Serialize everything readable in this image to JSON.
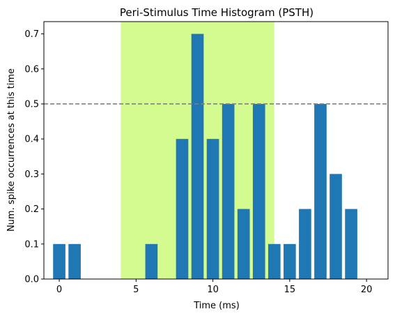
{
  "chart_data": {
    "type": "bar",
    "title": "Peri-Stimulus Time Histogram (PSTH)",
    "xlabel": "Time (ms)",
    "ylabel": "Num. spike occurrences at this time",
    "xlim": [
      -1,
      21.4
    ],
    "ylim": [
      0,
      0.735
    ],
    "xticks": [
      0,
      5,
      10,
      15,
      20
    ],
    "yticks": [
      0.0,
      0.1,
      0.2,
      0.3,
      0.4,
      0.5,
      0.6,
      0.7
    ],
    "xtick_labels": [
      "0",
      "5",
      "10",
      "15",
      "20"
    ],
    "ytick_labels": [
      "0.0",
      "0.1",
      "0.2",
      "0.3",
      "0.4",
      "0.5",
      "0.6",
      "0.7"
    ],
    "bar_width": 0.8,
    "x": [
      0,
      1,
      6,
      8,
      9,
      10,
      11,
      12,
      13,
      14,
      15,
      16,
      17,
      18,
      19
    ],
    "values": [
      0.1,
      0.1,
      0.1,
      0.4,
      0.7,
      0.4,
      0.5,
      0.2,
      0.5,
      0.1,
      0.1,
      0.2,
      0.5,
      0.3,
      0.2
    ],
    "shaded_region": {
      "x_start": 4,
      "x_end": 14,
      "color": "#d4fb8f"
    },
    "reference_line": {
      "y": 0.5,
      "style": "dashed",
      "color": "#808080"
    },
    "bar_color": "#1f77b4",
    "grid": false
  }
}
